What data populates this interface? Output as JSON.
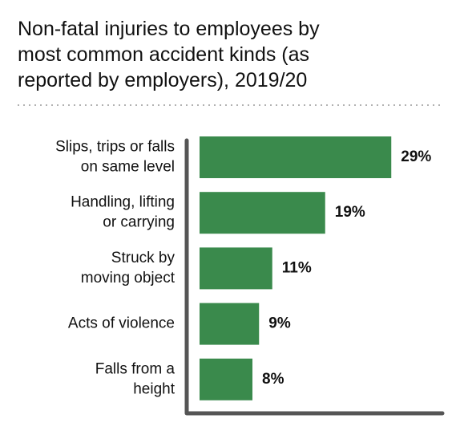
{
  "chart_data": {
    "type": "bar",
    "orientation": "horizontal",
    "title": "Non-fatal injuries to employees by\nmost common accident kinds (as\nreported by employers), 2019/20",
    "categories": [
      "Slips, trips or falls\non same level",
      "Handling, lifting\nor carrying",
      "Struck by\nmoving object",
      "Acts of violence",
      "Falls from a\nheight"
    ],
    "values": [
      29,
      19,
      11,
      9,
      8
    ],
    "value_labels": [
      "29%",
      "19%",
      "11%",
      "9%",
      "8%"
    ],
    "color": "#3a8a4c"
  }
}
